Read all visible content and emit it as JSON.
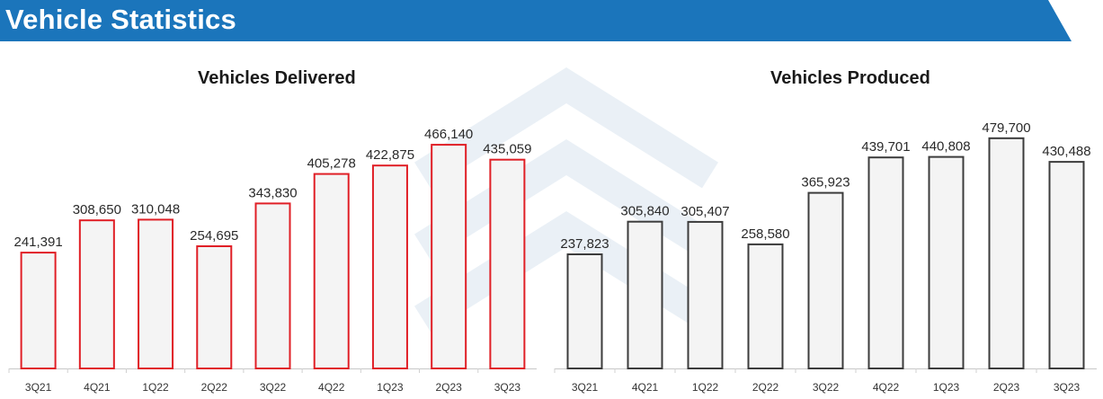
{
  "banner": {
    "title": "Vehicle Statistics",
    "color": "#1b75bb"
  },
  "chart_data": [
    {
      "type": "bar",
      "title": "Vehicles Delivered",
      "categories": [
        "3Q21",
        "4Q21",
        "1Q22",
        "2Q22",
        "3Q22",
        "4Q22",
        "1Q23",
        "2Q23",
        "3Q23"
      ],
      "values": [
        241391,
        308650,
        310048,
        254695,
        343830,
        405278,
        422875,
        466140,
        435059
      ],
      "value_labels": [
        "241,391",
        "308,650",
        "310,048",
        "254,695",
        "343,830",
        "405,278",
        "422,875",
        "466,140",
        "435,059"
      ],
      "xlabel": "",
      "ylabel": "",
      "ylim": [
        0,
        500000
      ],
      "grid": false,
      "bar_fill": "#f4f4f4",
      "bar_stroke": "#e01f26"
    },
    {
      "type": "bar",
      "title": "Vehicles Produced",
      "categories": [
        "3Q21",
        "4Q21",
        "1Q22",
        "2Q22",
        "3Q22",
        "4Q22",
        "1Q23",
        "2Q23",
        "3Q23"
      ],
      "values": [
        237823,
        305840,
        305407,
        258580,
        365923,
        439701,
        440808,
        479700,
        430488
      ],
      "value_labels": [
        "237,823",
        "305,840",
        "305,407",
        "258,580",
        "365,923",
        "439,701",
        "440,808",
        "479,700",
        "430,488"
      ],
      "xlabel": "",
      "ylabel": "",
      "ylim": [
        0,
        500000
      ],
      "grid": false,
      "bar_fill": "#f4f4f4",
      "bar_stroke": "#3c3c3c"
    }
  ]
}
